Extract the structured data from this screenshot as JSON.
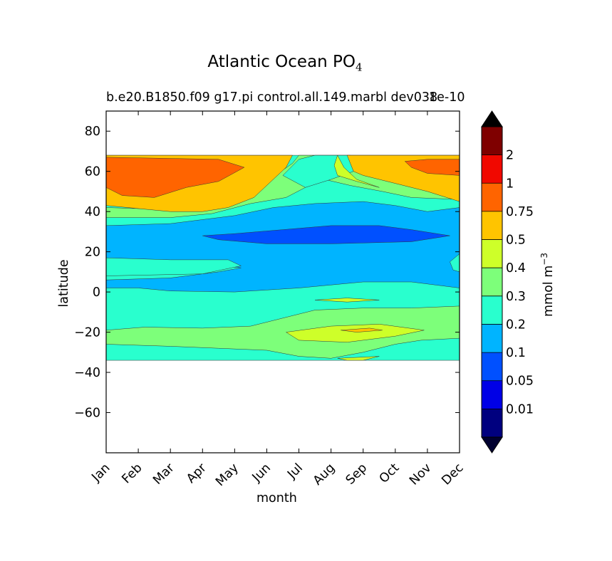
{
  "chart_data": {
    "type": "heatmap",
    "subtype": "filled-contour",
    "title": "Atlantic Ocean PO",
    "title_subscript": "4",
    "subtitle": "b.e20.B1850.f09 g17.pi control.all.149.marbl dev038",
    "sci_note": "1e-10",
    "xlabel": "month",
    "ylabel": "latitude",
    "x_categories": [
      "Jan",
      "Feb",
      "Mar",
      "Apr",
      "May",
      "Jun",
      "Jul",
      "Aug",
      "Sep",
      "Oct",
      "Nov",
      "Dec"
    ],
    "ylim": [
      -80,
      90
    ],
    "xlim": [
      1,
      12
    ],
    "y_ticks": [
      {
        "value": 80,
        "label": "80"
      },
      {
        "value": 60,
        "label": "60"
      },
      {
        "value": 40,
        "label": "40"
      },
      {
        "value": 20,
        "label": "20"
      },
      {
        "value": 0,
        "label": "0"
      },
      {
        "value": -20,
        "label": "−20"
      },
      {
        "value": -40,
        "label": "−40"
      },
      {
        "value": -60,
        "label": "−60"
      }
    ],
    "data_lat_range": [
      -34,
      68
    ],
    "colorbar": {
      "label": "mmol m",
      "label_sup": "−3",
      "extend": "both",
      "levels": [
        "0.01",
        "0.05",
        "0.1",
        "0.2",
        "0.3",
        "0.4",
        "0.5",
        "0.75",
        "1",
        "2"
      ],
      "colors": [
        "#00007f",
        "#0000e6",
        "#0050ff",
        "#00b4ff",
        "#29ffce",
        "#7dff7a",
        "#ceff29",
        "#ffc400",
        "#ff6400",
        "#f10800",
        "#7f0000"
      ],
      "under_color": "#000030",
      "over_color": "#000000"
    },
    "regions": [
      {
        "level_band": "0.5-0.75",
        "color": "#ffc400",
        "lat": [
          40,
          68
        ],
        "months": "Jan-Apr, Oct-Dec"
      },
      {
        "level_band": "0.75-1",
        "color": "#ff6400",
        "lat": [
          47,
          67
        ],
        "months": "Jan-Apr, Nov-Dec"
      },
      {
        "level_band": "0.75-1 (core)",
        "color": "#ff6400",
        "lat": [
          60,
          66
        ],
        "months": "Nov-Dec"
      },
      {
        "level_band": "0.1-0.2",
        "color": "#00b4ff",
        "lat": [
          2,
          44
        ],
        "months": "Jan-Dec"
      },
      {
        "level_band": "0.05-0.1",
        "color": "#0050ff",
        "lat": [
          24,
          34
        ],
        "months": "May-Oct"
      },
      {
        "level_band": "0.2-0.3",
        "color": "#29ffce",
        "lat": [
          -34,
          6
        ],
        "months": "Jan-Dec"
      },
      {
        "level_band": "0.3-0.4",
        "color": "#7dff7a",
        "lat": [
          -28,
          -18
        ],
        "months": "Jan-Dec"
      },
      {
        "level_band": "0.4-0.5",
        "color": "#ceff29",
        "lat": [
          -26,
          -16
        ],
        "months": "Jun-Oct"
      },
      {
        "level_band": "0.5-0.75",
        "color": "#ffc400",
        "lat": [
          -20,
          -17
        ],
        "months": "Aug-Sep"
      }
    ]
  }
}
